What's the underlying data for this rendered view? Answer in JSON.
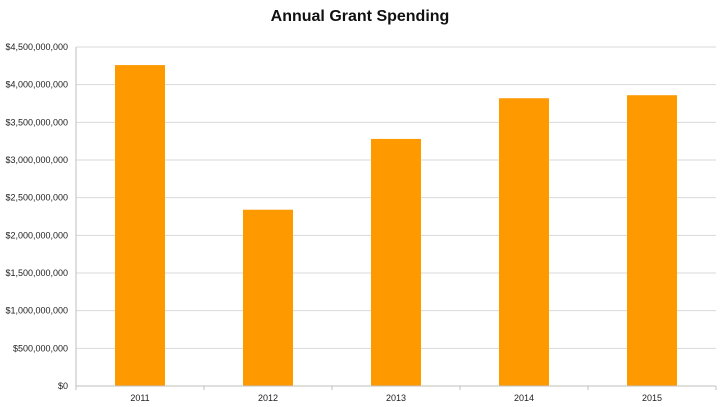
{
  "chart_data": {
    "type": "bar",
    "title": "Annual Grant Spending",
    "xlabel": "",
    "ylabel": "",
    "categories": [
      "2011",
      "2012",
      "2013",
      "2014",
      "2015"
    ],
    "values": [
      4260000000,
      2340000000,
      3280000000,
      3820000000,
      3860000000
    ],
    "ylim": [
      0,
      4500000000
    ],
    "y_ticks": [
      "$0",
      "$500,000,000",
      "$1,000,000,000",
      "$1,500,000,000",
      "$2,000,000,000",
      "$2,500,000,000",
      "$3,000,000,000",
      "$3,500,000,000",
      "$4,000,000,000",
      "$4,500,000,000"
    ],
    "grid": true,
    "legend": "none",
    "colors": {
      "bar": "#FF9900",
      "grid": "#D9D9D9",
      "axis": "#BFBFBF"
    }
  }
}
